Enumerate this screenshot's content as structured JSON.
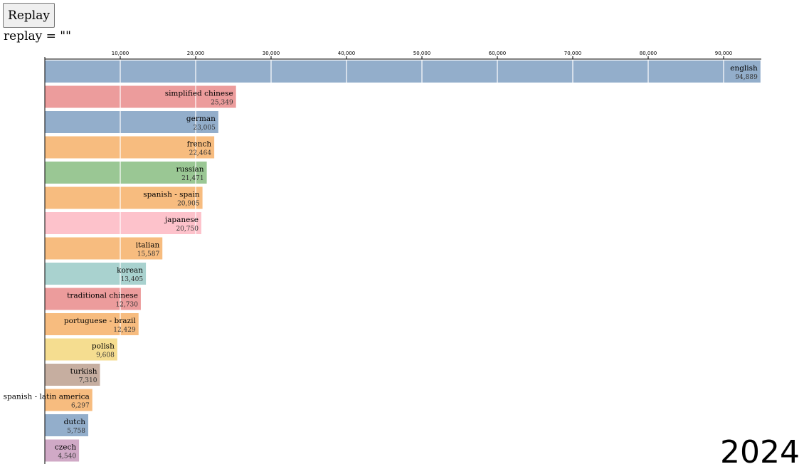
{
  "controls": {
    "replay_label": "Replay",
    "replay_readout": "replay = \"\""
  },
  "chart_data": {
    "type": "bar",
    "orientation": "horizontal",
    "year": "2024",
    "xlim": [
      0,
      95000
    ],
    "ticks": [
      10000,
      20000,
      30000,
      40000,
      50000,
      60000,
      70000,
      80000,
      90000
    ],
    "tick_labels": [
      "10,000",
      "20,000",
      "30,000",
      "40,000",
      "50,000",
      "60,000",
      "70,000",
      "80,000",
      "90,000"
    ],
    "grid": true,
    "categories": [
      "english",
      "simplified chinese",
      "german",
      "french",
      "russian",
      "spanish - spain",
      "japanese",
      "italian",
      "korean",
      "traditional chinese",
      "portuguese - brazil",
      "polish",
      "turkish",
      "spanish - latin america",
      "dutch",
      "czech"
    ],
    "values": [
      94889,
      25349,
      23005,
      22464,
      21471,
      20905,
      20750,
      15587,
      13405,
      12730,
      12429,
      9608,
      7310,
      6297,
      5758,
      4540
    ],
    "value_labels": [
      "94,889",
      "25,349",
      "23,005",
      "22,464",
      "21,471",
      "20,905",
      "20,750",
      "15,587",
      "13,405",
      "12,730",
      "12,429",
      "9,608",
      "7,310",
      "6,297",
      "5,758",
      "4,540"
    ],
    "colors": [
      "#93aecb",
      "#ec9c9c",
      "#93aecb",
      "#f7bc7f",
      "#9ac794",
      "#f7bc7f",
      "#fdc2cb",
      "#f7bc7f",
      "#a9d2cf",
      "#ec9c9c",
      "#f7bc7f",
      "#f5dd90",
      "#c6aea0",
      "#f7bc7f",
      "#93aecb",
      "#d0a9c6"
    ]
  }
}
